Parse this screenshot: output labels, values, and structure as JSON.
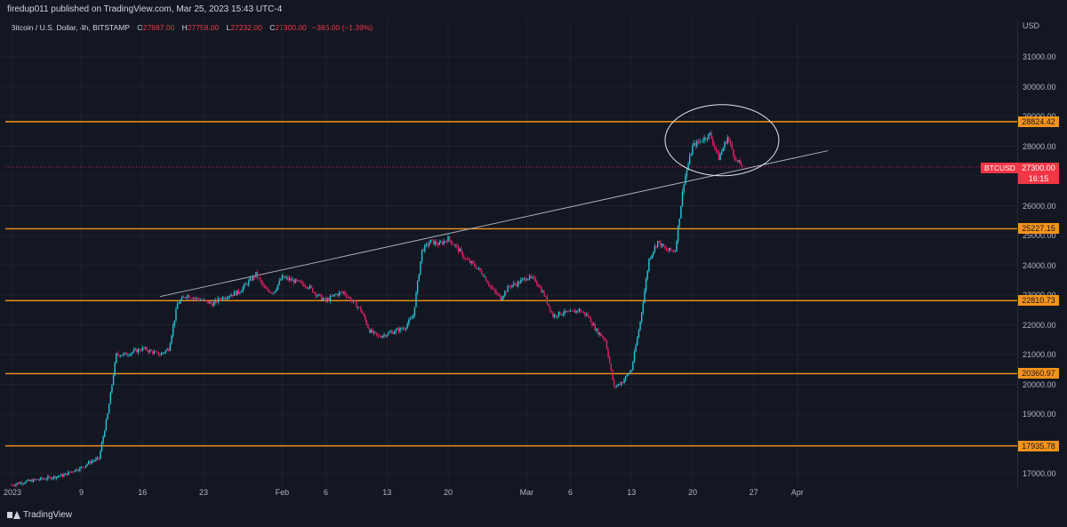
{
  "header": {
    "published": "firedup011 published on TradingView.com, Mar 25, 2023 15:43 UTC-4"
  },
  "legend": {
    "symbol": "Bitcoin / U.S. Dollar, 4h, BITSTAMP",
    "open_label": "O",
    "open": "27687.00",
    "high_label": "H",
    "high": "27758.00",
    "low_label": "L",
    "low": "27232.00",
    "close_label": "C",
    "close": "27300.00",
    "change": "−386.00 (−1.39%)"
  },
  "currency": "USD",
  "footer": {
    "brand": "TradingView"
  },
  "current": {
    "symbol_tag": "BTCUSD",
    "price": "27300.00",
    "countdown": "16:15"
  },
  "colors": {
    "up": "#26c6da",
    "down": "#e91e63",
    "level": "#f7931a",
    "background": "#131722"
  },
  "chart_data": {
    "type": "candlestick",
    "ylim": [
      16500,
      32000
    ],
    "y_ticks": [
      {
        "value": 17000,
        "label": "17000.00"
      },
      {
        "value": 18000,
        "label": "18000.00"
      },
      {
        "value": 19000,
        "label": "19000.00"
      },
      {
        "value": 20000,
        "label": "20000.00"
      },
      {
        "value": 21000,
        "label": "21000.00"
      },
      {
        "value": 22000,
        "label": "22000.00"
      },
      {
        "value": 23000,
        "label": "23000.00"
      },
      {
        "value": 24000,
        "label": "24000.00"
      },
      {
        "value": 25000,
        "label": "25000.00"
      },
      {
        "value": 26000,
        "label": "26000.00"
      },
      {
        "value": 27000,
        "label": "27000.00"
      },
      {
        "value": 28000,
        "label": "28000.00"
      },
      {
        "value": 29000,
        "label": "29000.00"
      },
      {
        "value": 30000,
        "label": "30000.00"
      },
      {
        "value": 31000,
        "label": "31000.00"
      }
    ],
    "x_ticks": [
      {
        "day": 1,
        "label": "2023"
      },
      {
        "day": 9,
        "label": "9"
      },
      {
        "day": 16,
        "label": "16"
      },
      {
        "day": 23,
        "label": "23"
      },
      {
        "day": 32,
        "label": "Feb"
      },
      {
        "day": 37,
        "label": "6"
      },
      {
        "day": 44,
        "label": "13"
      },
      {
        "day": 51,
        "label": "20"
      },
      {
        "day": 60,
        "label": "Mar"
      },
      {
        "day": 65,
        "label": "6"
      },
      {
        "day": 72,
        "label": "13"
      },
      {
        "day": 79,
        "label": "20"
      },
      {
        "day": 86,
        "label": "27"
      },
      {
        "day": 91,
        "label": "Apr"
      }
    ],
    "levels": [
      {
        "value": 28824.42,
        "label": "28824.42"
      },
      {
        "value": 25227.15,
        "label": "25227.15"
      },
      {
        "value": 22810.73,
        "label": "22810.73"
      },
      {
        "value": 20360.97,
        "label": "20360.97"
      },
      {
        "value": 17935.78,
        "label": "17935.78"
      }
    ],
    "close_anchors": [
      [
        1,
        16620
      ],
      [
        2,
        16700
      ],
      [
        3,
        16750
      ],
      [
        5,
        16850
      ],
      [
        7,
        16950
      ],
      [
        8,
        17100
      ],
      [
        9,
        17200
      ],
      [
        10,
        17400
      ],
      [
        11,
        17500
      ],
      [
        12,
        19000
      ],
      [
        13,
        21000
      ],
      [
        14,
        21000
      ],
      [
        15,
        21100
      ],
      [
        16,
        21200
      ],
      [
        17,
        21100
      ],
      [
        18,
        21000
      ],
      [
        19,
        21200
      ],
      [
        20,
        22700
      ],
      [
        21,
        23000
      ],
      [
        22,
        22900
      ],
      [
        23,
        22800
      ],
      [
        24,
        22700
      ],
      [
        25,
        22900
      ],
      [
        26,
        23000
      ],
      [
        27,
        23100
      ],
      [
        28,
        23400
      ],
      [
        29,
        23700
      ],
      [
        30,
        23200
      ],
      [
        31,
        23100
      ],
      [
        32,
        23600
      ],
      [
        33,
        23500
      ],
      [
        34,
        23400
      ],
      [
        35,
        23300
      ],
      [
        36,
        23000
      ],
      [
        37,
        22800
      ],
      [
        38,
        23000
      ],
      [
        39,
        23100
      ],
      [
        40,
        22800
      ],
      [
        41,
        22500
      ],
      [
        42,
        21800
      ],
      [
        43,
        21600
      ],
      [
        44,
        21700
      ],
      [
        45,
        21800
      ],
      [
        46,
        21900
      ],
      [
        47,
        22300
      ],
      [
        48,
        24500
      ],
      [
        49,
        24800
      ],
      [
        50,
        24700
      ],
      [
        51,
        24900
      ],
      [
        52,
        24600
      ],
      [
        53,
        24200
      ],
      [
        54,
        24000
      ],
      [
        55,
        23700
      ],
      [
        56,
        23200
      ],
      [
        57,
        22900
      ],
      [
        58,
        23300
      ],
      [
        59,
        23400
      ],
      [
        60,
        23600
      ],
      [
        61,
        23500
      ],
      [
        62,
        23000
      ],
      [
        63,
        22300
      ],
      [
        64,
        22400
      ],
      [
        65,
        22400
      ],
      [
        66,
        22500
      ],
      [
        67,
        22300
      ],
      [
        68,
        21800
      ],
      [
        69,
        21500
      ],
      [
        70,
        19900
      ],
      [
        71,
        20100
      ],
      [
        72,
        20500
      ],
      [
        73,
        22100
      ],
      [
        74,
        24200
      ],
      [
        75,
        24800
      ],
      [
        76,
        24500
      ],
      [
        77,
        24500
      ],
      [
        78,
        26800
      ],
      [
        79,
        28000
      ],
      [
        80,
        28200
      ],
      [
        81,
        28400
      ],
      [
        82,
        27600
      ],
      [
        83,
        28300
      ],
      [
        84,
        27500
      ],
      [
        84.8,
        27300
      ]
    ],
    "trendline": {
      "start": {
        "day": 18,
        "value": 22950
      },
      "end": {
        "day": 94.5,
        "value": 27850
      }
    },
    "last_price": 27300,
    "annotation": "circle around the recent peak region (days 79–84)"
  }
}
